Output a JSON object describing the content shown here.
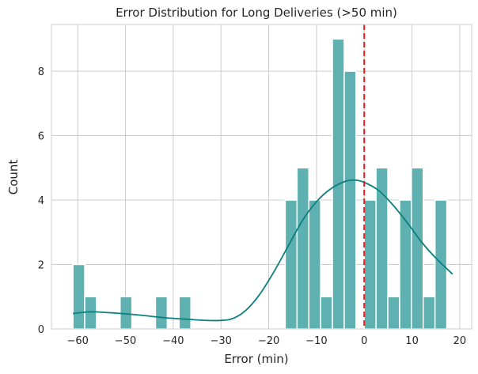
{
  "chart_data": {
    "type": "bar",
    "title": "Error Distribution for Long Deliveries (>50 min)",
    "xlabel": "Error (min)",
    "ylabel": "Count",
    "xlim": [
      -65.5,
      22.5
    ],
    "ylim": [
      0,
      9.45
    ],
    "x_ticks": [
      -60,
      -50,
      -40,
      -30,
      -20,
      -10,
      0,
      10,
      20
    ],
    "y_ticks": [
      0,
      2,
      4,
      6,
      8
    ],
    "grid": true,
    "bin_width": 2.47,
    "bars": [
      {
        "x0": -61.0,
        "count": 2
      },
      {
        "x0": -58.53,
        "count": 1
      },
      {
        "x0": -51.12,
        "count": 1
      },
      {
        "x0": -43.71,
        "count": 1
      },
      {
        "x0": -38.77,
        "count": 1
      },
      {
        "x0": -16.54,
        "count": 4
      },
      {
        "x0": -14.07,
        "count": 5
      },
      {
        "x0": -11.6,
        "count": 4
      },
      {
        "x0": -9.13,
        "count": 1
      },
      {
        "x0": -6.66,
        "count": 9
      },
      {
        "x0": -4.19,
        "count": 8
      },
      {
        "x0": -1.72,
        "count": 0
      },
      {
        "x0": 0.0,
        "count": 4
      },
      {
        "x0": 2.47,
        "count": 5
      },
      {
        "x0": 4.94,
        "count": 1
      },
      {
        "x0": 7.41,
        "count": 4
      },
      {
        "x0": 9.88,
        "count": 5
      },
      {
        "x0": 12.35,
        "count": 1
      },
      {
        "x0": 14.82,
        "count": 4
      }
    ],
    "kde": {
      "x": [
        -61,
        -57,
        -52,
        -47,
        -42,
        -37,
        -32,
        -28,
        -25,
        -22,
        -19,
        -16,
        -13,
        -10,
        -7,
        -4,
        -2,
        0,
        3,
        6,
        9,
        12,
        15,
        18.5
      ],
      "y": [
        0.48,
        0.53,
        0.49,
        0.43,
        0.35,
        0.3,
        0.26,
        0.3,
        0.55,
        1.05,
        1.75,
        2.55,
        3.35,
        3.95,
        4.35,
        4.58,
        4.62,
        4.55,
        4.3,
        3.85,
        3.3,
        2.7,
        2.2,
        1.7
      ]
    },
    "reference_line": {
      "x": 0,
      "color": "#e41a1c",
      "style": "dashed"
    },
    "colors": {
      "bar": "#5fb0b0",
      "bar_edge": "#ffffff",
      "kde": "#0b7f7f"
    }
  }
}
